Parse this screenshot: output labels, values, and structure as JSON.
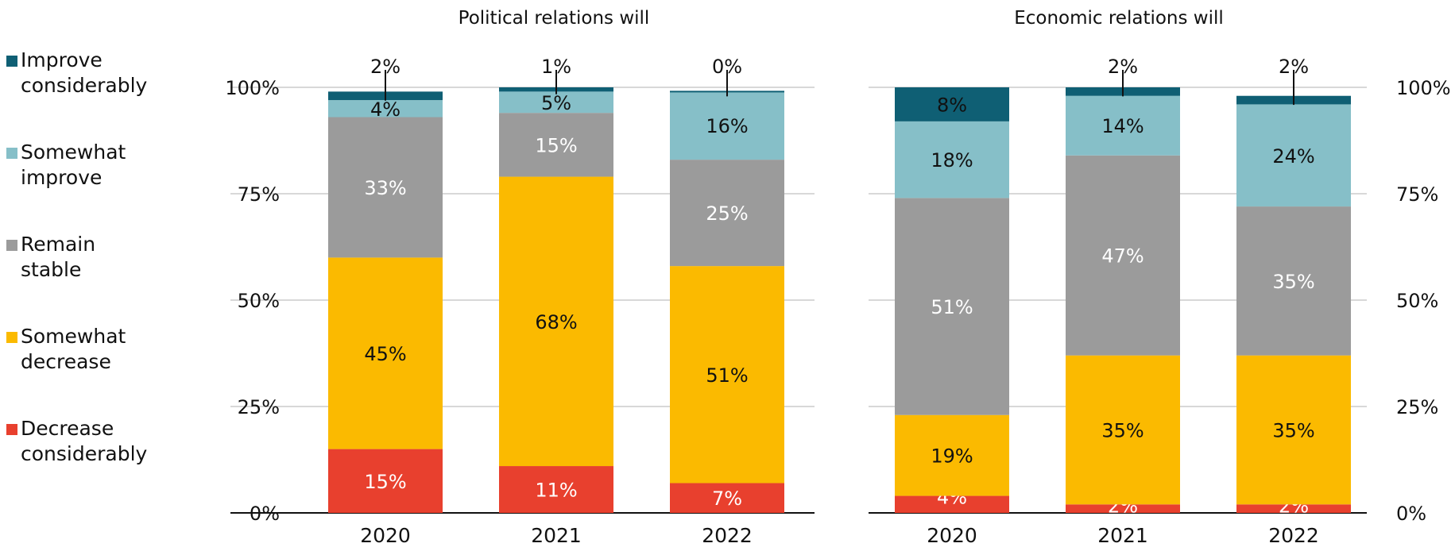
{
  "legend": [
    {
      "label": "Improve\nconsiderably",
      "color": "#0f5f74"
    },
    {
      "label": "Somewhat\nimprove",
      "color": "#86bfc8"
    },
    {
      "label": "Remain\nstable",
      "color": "#9b9b9b"
    },
    {
      "label": "Somewhat\ndecrease",
      "color": "#fbba00"
    },
    {
      "label": "Decrease\nconsiderably",
      "color": "#e8402e"
    }
  ],
  "chart_data": [
    {
      "type": "bar",
      "stacked": true,
      "title": "Political relations will",
      "categories": [
        "2020",
        "2021",
        "2022"
      ],
      "ylim": [
        0,
        100
      ],
      "yticks": [
        "0%",
        "25%",
        "50%",
        "75%",
        "100%"
      ],
      "series": [
        {
          "name": "Decrease considerably",
          "values": [
            15,
            11,
            7
          ],
          "labels": [
            "15%",
            "11%",
            "7%"
          ]
        },
        {
          "name": "Somewhat decrease",
          "values": [
            45,
            68,
            51
          ],
          "labels": [
            "45%",
            "68%",
            "51%"
          ]
        },
        {
          "name": "Remain stable",
          "values": [
            33,
            15,
            25
          ],
          "labels": [
            "33%",
            "15%",
            "25%"
          ]
        },
        {
          "name": "Somewhat improve",
          "values": [
            4,
            5,
            16
          ],
          "labels": [
            "4%",
            "5%",
            "16%"
          ]
        },
        {
          "name": "Improve considerably",
          "values": [
            2,
            1,
            0
          ],
          "labels": [
            "2%",
            "1%",
            "0%"
          ]
        }
      ]
    },
    {
      "type": "bar",
      "stacked": true,
      "title": "Economic relations will",
      "categories": [
        "2020",
        "2021",
        "2022"
      ],
      "ylim": [
        0,
        100
      ],
      "yticks": [
        "0%",
        "25%",
        "50%",
        "75%",
        "100%"
      ],
      "series": [
        {
          "name": "Decrease considerably",
          "values": [
            4,
            2,
            2
          ],
          "labels": [
            "4%",
            "2%",
            "2%"
          ]
        },
        {
          "name": "Somewhat decrease",
          "values": [
            19,
            35,
            35
          ],
          "labels": [
            "19%",
            "35%",
            "35%"
          ]
        },
        {
          "name": "Remain stable",
          "values": [
            51,
            47,
            35
          ],
          "labels": [
            "51%",
            "47%",
            "35%"
          ]
        },
        {
          "name": "Somewhat improve",
          "values": [
            18,
            14,
            24
          ],
          "labels": [
            "18%",
            "14%",
            "24%"
          ]
        },
        {
          "name": "Improve considerably",
          "values": [
            8,
            2,
            2
          ],
          "labels": [
            "8%",
            "2%",
            "2%"
          ]
        }
      ]
    }
  ]
}
